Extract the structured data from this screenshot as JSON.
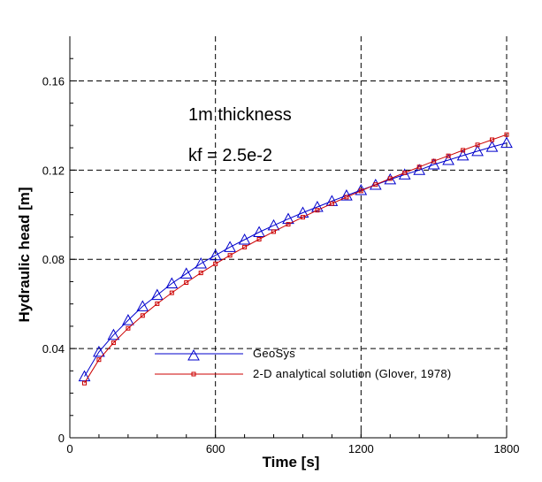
{
  "chart_data": {
    "type": "line",
    "xlabel": "Time [s]",
    "ylabel": "Hydraulic head [m]",
    "xlim": [
      0,
      1800
    ],
    "ylim": [
      0,
      0.18
    ],
    "x_ticks": [
      0,
      600,
      1200,
      1800
    ],
    "x_tick_labels": [
      "0",
      "600",
      "1200",
      "1800"
    ],
    "y_ticks": [
      0,
      0.04,
      0.08,
      0.12,
      0.16
    ],
    "y_tick_labels": [
      "0",
      "0.04",
      "0.08",
      "0.12",
      "0.16"
    ],
    "grid": "dashed",
    "legend_placement": "lower-center",
    "annotations": [
      "1m thickness",
      "kf = 2.5e-2"
    ],
    "series": [
      {
        "name": "GeoSys",
        "color": "#0000cc",
        "marker": "triangle",
        "x": [
          60,
          120,
          180,
          240,
          300,
          360,
          420,
          480,
          540,
          600,
          660,
          720,
          780,
          840,
          900,
          960,
          1020,
          1080,
          1140,
          1200,
          1260,
          1320,
          1380,
          1440,
          1500,
          1560,
          1620,
          1680,
          1740,
          1800
        ],
        "y": [
          0.0275,
          0.0385,
          0.0461,
          0.0527,
          0.0589,
          0.064,
          0.0692,
          0.0736,
          0.0781,
          0.0818,
          0.0855,
          0.0888,
          0.0922,
          0.0952,
          0.0981,
          0.1009,
          0.1035,
          0.1061,
          0.1086,
          0.111,
          0.1134,
          0.1158,
          0.118,
          0.12,
          0.1225,
          0.1245,
          0.1265,
          0.1285,
          0.1304,
          0.1322
        ]
      },
      {
        "name": "2-D analytical solution (Glover, 1978)",
        "color": "#cc0000",
        "marker": "square",
        "x": [
          60,
          120,
          180,
          240,
          300,
          360,
          420,
          480,
          540,
          600,
          660,
          720,
          780,
          840,
          900,
          960,
          1020,
          1080,
          1140,
          1200,
          1260,
          1320,
          1380,
          1440,
          1500,
          1560,
          1620,
          1680,
          1740,
          1800
        ],
        "y": [
          0.0245,
          0.035,
          0.0426,
          0.0491,
          0.0548,
          0.0601,
          0.065,
          0.0696,
          0.0739,
          0.078,
          0.0818,
          0.0855,
          0.089,
          0.0924,
          0.0957,
          0.0989,
          0.102,
          0.105,
          0.1079,
          0.1107,
          0.1135,
          0.1162,
          0.1188,
          0.1214,
          0.124,
          0.1264,
          0.1289,
          0.1313,
          0.1336,
          0.1359
        ]
      }
    ]
  }
}
